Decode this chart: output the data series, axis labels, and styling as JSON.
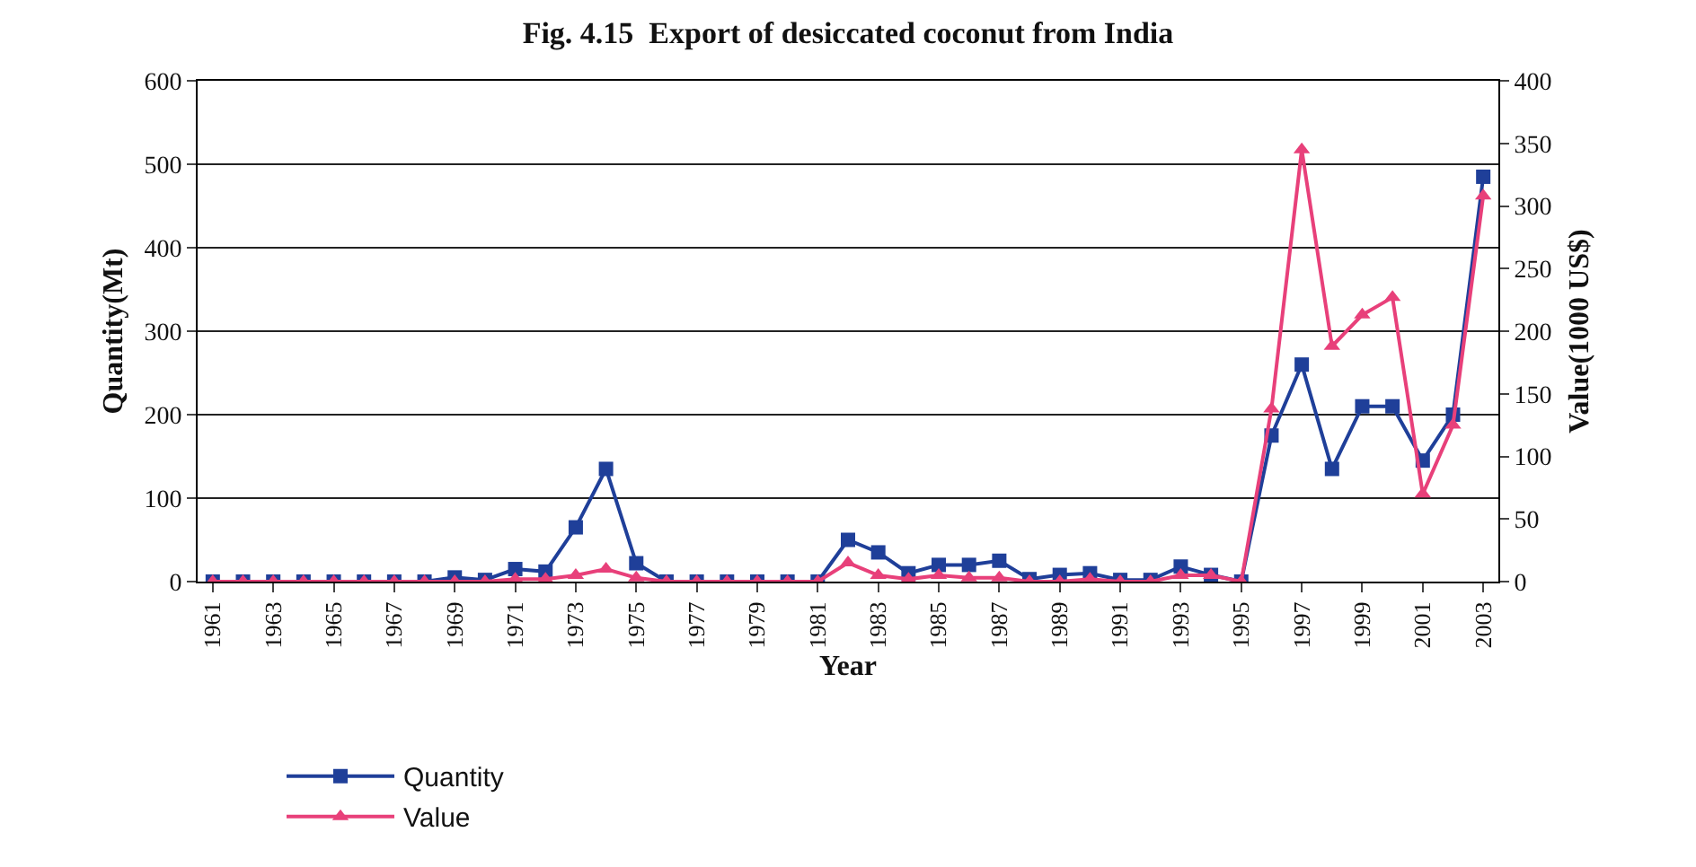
{
  "chart_data": {
    "type": "line",
    "title": "Fig. 4.15  Export of desiccated coconut from India",
    "xlabel": "Year",
    "ylabel": "Quantity(Mt)",
    "y2label": "Value(1000 US$)",
    "categories": [
      "1961",
      null,
      "1963",
      null,
      "1965",
      null,
      "1967",
      null,
      "1969",
      null,
      "1971",
      null,
      "1973",
      null,
      "1975",
      null,
      "1977",
      null,
      "1979",
      null,
      "1981",
      null,
      "1983",
      null,
      "1985",
      null,
      "1987",
      null,
      "1989",
      null,
      "1991",
      null,
      "1993",
      null,
      "1995",
      null,
      "1997",
      null,
      "1999",
      null,
      "2001",
      null,
      "2003"
    ],
    "series": [
      {
        "name": "Quantity",
        "color": "#1f3f99",
        "marker": "square",
        "values": [
          0,
          0,
          0,
          0,
          0,
          0,
          0,
          0,
          5,
          2,
          15,
          12,
          65,
          135,
          22,
          0,
          0,
          0,
          0,
          0,
          0,
          50,
          35,
          10,
          20,
          20,
          25,
          3,
          8,
          10,
          2,
          2,
          18,
          8,
          0,
          175,
          260,
          135,
          210,
          210,
          145,
          200,
          485
        ]
      },
      {
        "name": "Value",
        "color": "#e8407a",
        "marker": "triangle",
        "axis": "y2",
        "values": [
          0,
          0,
          0,
          0,
          0,
          0,
          0,
          0,
          0,
          0,
          2,
          2,
          5,
          10,
          3,
          0,
          0,
          0,
          0,
          0,
          0,
          15,
          5,
          2,
          5,
          3,
          3,
          0,
          0,
          2,
          0,
          0,
          5,
          5,
          0,
          138,
          345,
          188,
          213,
          227,
          70,
          125,
          308
        ]
      }
    ],
    "ylim": [
      0,
      600
    ],
    "yticks": [
      0,
      100,
      200,
      300,
      400,
      500,
      600
    ],
    "y2lim": [
      0,
      400
    ],
    "y2ticks": [
      0,
      50,
      100,
      150,
      200,
      250,
      300,
      350,
      400
    ],
    "grid": "y",
    "legend": "bottom",
    "line_style": "solid"
  }
}
